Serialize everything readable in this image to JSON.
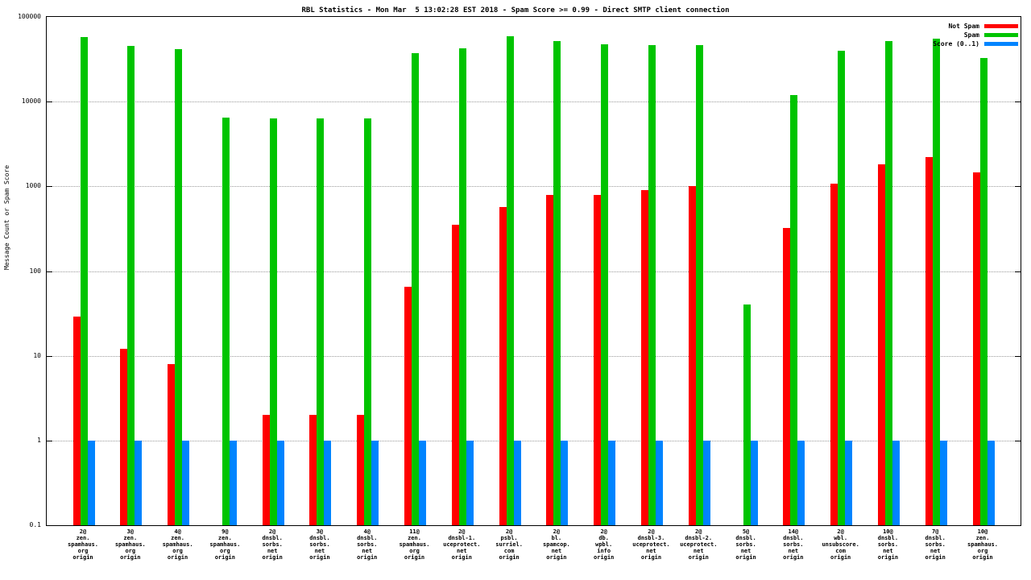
{
  "chart_data": {
    "type": "bar",
    "title": "RBL Statistics - Mon Mar  5 13:02:28 EST 2018 - Spam Score >= 0.99 - Direct SMTP client connection",
    "ylabel": "Message Count or Spam Score",
    "y_scale": "log",
    "ylim": [
      0.1,
      100000
    ],
    "grid": true,
    "legend_position": "top-right",
    "y_ticks": [
      {
        "label": "100000",
        "value": 100000
      },
      {
        "label": "10000",
        "value": 10000
      },
      {
        "label": "1000",
        "value": 1000
      },
      {
        "label": "100",
        "value": 100
      },
      {
        "label": "10",
        "value": 10
      },
      {
        "label": "1",
        "value": 1
      },
      {
        "label": "0.1",
        "value": 0.1
      }
    ],
    "categories": [
      {
        "lines": [
          "2@",
          "zen.",
          "spamhaus.",
          "org",
          "origin"
        ]
      },
      {
        "lines": [
          "3@",
          "zen.",
          "spamhaus.",
          "org",
          "origin"
        ]
      },
      {
        "lines": [
          "4@",
          "zen.",
          "spamhaus.",
          "org",
          "origin"
        ]
      },
      {
        "lines": [
          "9@",
          "zen.",
          "spamhaus.",
          "org",
          "origin"
        ]
      },
      {
        "lines": [
          "2@",
          "dnsbl.",
          "sorbs.",
          "net",
          "origin"
        ]
      },
      {
        "lines": [
          "3@",
          "dnsbl.",
          "sorbs.",
          "net",
          "origin"
        ]
      },
      {
        "lines": [
          "4@",
          "dnsbl.",
          "sorbs.",
          "net",
          "origin"
        ]
      },
      {
        "lines": [
          "11@",
          "zen.",
          "spamhaus.",
          "org",
          "origin"
        ]
      },
      {
        "lines": [
          "2@",
          "dnsbl-1.",
          "uceprotect.",
          "net",
          "origin"
        ]
      },
      {
        "lines": [
          "2@",
          "psbl.",
          "surriel.",
          "com",
          "origin"
        ]
      },
      {
        "lines": [
          "2@",
          "bl.",
          "spamcop.",
          "net",
          "origin"
        ]
      },
      {
        "lines": [
          "2@",
          "db.",
          "wpbl.",
          "info",
          "origin"
        ]
      },
      {
        "lines": [
          "2@",
          "dnsbl-3.",
          "uceprotect.",
          "net",
          "origin"
        ]
      },
      {
        "lines": [
          "2@",
          "dnsbl-2.",
          "uceprotect.",
          "net",
          "origin"
        ]
      },
      {
        "lines": [
          "5@",
          "dnsbl.",
          "sorbs.",
          "net",
          "origin"
        ]
      },
      {
        "lines": [
          "14@",
          "dnsbl.",
          "sorbs.",
          "net",
          "origin"
        ]
      },
      {
        "lines": [
          "2@",
          "wbl.",
          "unsubscore.",
          "com",
          "origin"
        ]
      },
      {
        "lines": [
          "10@",
          "dnsbl.",
          "sorbs.",
          "net",
          "origin"
        ]
      },
      {
        "lines": [
          "7@",
          "dnsbl.",
          "sorbs.",
          "net",
          "origin"
        ]
      },
      {
        "lines": [
          "10@",
          "zen.",
          "spamhaus.",
          "org",
          "origin"
        ]
      }
    ],
    "series": [
      {
        "name": "Not Spam",
        "color": "#ff0000",
        "values": [
          29,
          12,
          8,
          0,
          2,
          2,
          2,
          65,
          350,
          570,
          800,
          800,
          900,
          1000,
          0,
          320,
          1080,
          1800,
          2200,
          1450
        ]
      },
      {
        "name": "Spam",
        "color": "#00c400",
        "values": [
          58000,
          45000,
          42000,
          6500,
          6300,
          6300,
          6300,
          37000,
          43000,
          59000,
          52000,
          47000,
          46000,
          46000,
          40,
          12000,
          40000,
          52000,
          55000,
          33000
        ]
      },
      {
        "name": "Score (0..1)",
        "color": "#0084ff",
        "values": [
          1,
          1,
          1,
          1,
          1,
          1,
          1,
          1,
          1,
          1,
          1,
          1,
          1,
          1,
          1,
          1,
          1,
          1,
          1,
          1
        ]
      }
    ]
  }
}
